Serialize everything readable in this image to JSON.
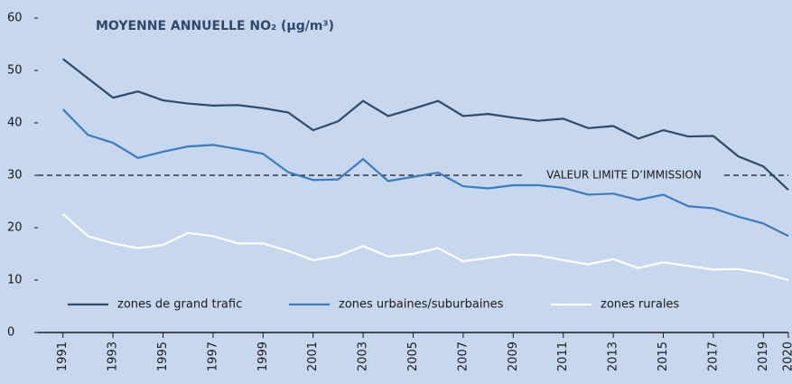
{
  "chart_data": {
    "type": "line",
    "title": "MOYENNE ANNUELLE NO₂ (µg/m³)",
    "x": [
      1991,
      1992,
      1993,
      1994,
      1995,
      1996,
      1997,
      1998,
      1999,
      2000,
      2001,
      2002,
      2003,
      2004,
      2005,
      2006,
      2007,
      2008,
      2009,
      2010,
      2011,
      2012,
      2013,
      2014,
      2015,
      2016,
      2017,
      2018,
      2019,
      2020
    ],
    "xlim": [
      1990,
      2020
    ],
    "xticks": [
      1991,
      1993,
      1995,
      1997,
      1999,
      2001,
      2003,
      2005,
      2007,
      2009,
      2011,
      2013,
      2015,
      2017,
      2019,
      2020
    ],
    "ylim": [
      0,
      60
    ],
    "yticks": [
      0,
      10,
      20,
      30,
      40,
      50,
      60
    ],
    "reference_line": {
      "value": 30,
      "label": "VALEUR LIMITE D’IMMISSION"
    },
    "legend": "bottom",
    "series": [
      {
        "name": "zones de grand trafic",
        "color": "#2e4a6b",
        "values": [
          52.2,
          48.5,
          44.8,
          46,
          44.3,
          43.7,
          43.3,
          43.4,
          42.8,
          42,
          38.6,
          40.3,
          44.2,
          41.3,
          42.7,
          44.2,
          41.3,
          41.7,
          41,
          40.4,
          40.8,
          39,
          39.4,
          37,
          38.6,
          37.4,
          37.5,
          33.6,
          31.7,
          27.2
        ]
      },
      {
        "name": "zones urbaines/suburbaines",
        "color": "#3b7cbf",
        "values": [
          42.6,
          37.7,
          36.2,
          33.3,
          34.5,
          35.5,
          35.8,
          35,
          34.1,
          30.6,
          29.1,
          29.2,
          33.1,
          28.9,
          29.7,
          30.5,
          27.9,
          27.5,
          28.1,
          28.1,
          27.6,
          26.3,
          26.5,
          25.3,
          26.3,
          24.1,
          23.7,
          22.1,
          20.8,
          18.4
        ]
      },
      {
        "name": "zones rurales",
        "color": "#ffffff",
        "values": [
          22.6,
          18.4,
          17,
          16.1,
          16.7,
          19,
          18.4,
          17,
          17,
          15.6,
          13.8,
          14.6,
          16.5,
          14.5,
          15,
          16.1,
          13.6,
          14.2,
          14.9,
          14.7,
          13.8,
          13,
          14,
          12.3,
          13.4,
          12.7,
          12,
          12.1,
          11.3,
          10
        ]
      }
    ]
  }
}
